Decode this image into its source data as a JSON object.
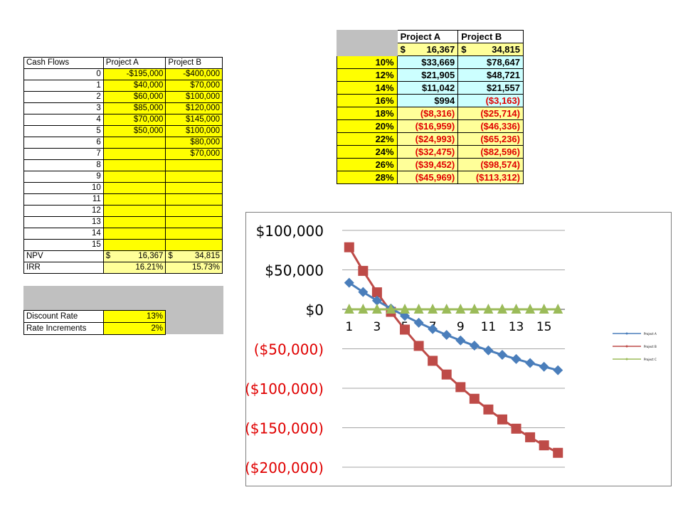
{
  "cashflow_table": {
    "headers": [
      "Cash Flows",
      "Project A",
      "Project B"
    ],
    "rows": [
      [
        "0",
        "-$195,000",
        "-$400,000"
      ],
      [
        "1",
        "$40,000",
        "$70,000"
      ],
      [
        "2",
        "$60,000",
        "$100,000"
      ],
      [
        "3",
        "$85,000",
        "$120,000"
      ],
      [
        "4",
        "$70,000",
        "$145,000"
      ],
      [
        "5",
        "$50,000",
        "$100,000"
      ],
      [
        "6",
        "",
        "$80,000"
      ],
      [
        "7",
        "",
        "$70,000"
      ],
      [
        "8",
        "",
        ""
      ],
      [
        "9",
        "",
        ""
      ],
      [
        "10",
        "",
        ""
      ],
      [
        "11",
        "",
        ""
      ],
      [
        "12",
        "",
        ""
      ],
      [
        "13",
        "",
        ""
      ],
      [
        "14",
        "",
        ""
      ],
      [
        "15",
        "",
        ""
      ]
    ],
    "npv": {
      "label": "NPV",
      "a_sym": "$",
      "a": "16,367",
      "b_sym": "$",
      "b": "34,815"
    },
    "irr": {
      "label": "IRR",
      "a": "16.21%",
      "b": "15.73%"
    },
    "discount_rate": {
      "label": "Discount Rate",
      "value": "13%"
    },
    "rate_increments": {
      "label": "Rate Increments",
      "value": "2%"
    }
  },
  "npv_table": {
    "headers": [
      "Project A",
      "Project B"
    ],
    "base": {
      "a_sym": "$",
      "a": "16,367",
      "b_sym": "$",
      "b": "34,815"
    },
    "rows": [
      {
        "rate": "10%",
        "a": "$33,669",
        "b": "$78,647"
      },
      {
        "rate": "12%",
        "a": "$21,905",
        "b": "$48,721"
      },
      {
        "rate": "14%",
        "a": "$11,042",
        "b": "$21,557"
      },
      {
        "rate": "16%",
        "a": "$994",
        "b": "($3,163)"
      },
      {
        "rate": "18%",
        "a": "($8,316)",
        "b": "($25,714)"
      },
      {
        "rate": "20%",
        "a": "($16,959)",
        "b": "($46,336)"
      },
      {
        "rate": "22%",
        "a": "($24,993)",
        "b": "($65,236)"
      },
      {
        "rate": "24%",
        "a": "($32,475)",
        "b": "($82,596)"
      },
      {
        "rate": "26%",
        "a": "($39,452)",
        "b": "($98,574)"
      },
      {
        "rate": "28%",
        "a": "($45,969)",
        "b": "($113,312)"
      }
    ]
  },
  "colors": {
    "series_a": "#4a7ebb",
    "series_b": "#be4b48",
    "series_c": "#9bbb59",
    "negative_label": "#e00000",
    "gridline": "#a6a6a6"
  },
  "chart_data": {
    "type": "line",
    "x": [
      1,
      2,
      3,
      4,
      5,
      6,
      7,
      8,
      9,
      10,
      11,
      12,
      13,
      14,
      15,
      16
    ],
    "xtick_labels": [
      "1",
      "3",
      "5",
      "7",
      "9",
      "11",
      "13",
      "15"
    ],
    "ytick_labels": [
      "$100,000",
      "$50,000",
      "$0",
      "($50,000)",
      "($100,000)",
      "($150,000)",
      "($200,000)"
    ],
    "ytick_values": [
      100000,
      50000,
      0,
      -50000,
      -100000,
      -150000,
      -200000
    ],
    "ylim": [
      -200000,
      100000
    ],
    "grid": true,
    "legend": "right",
    "series": [
      {
        "name": "Project A",
        "values": [
          33669,
          21905,
          11042,
          994,
          -8316,
          -16959,
          -24993,
          -32475,
          -39452,
          -45969,
          -52000,
          -57700,
          -63000,
          -68000,
          -72700,
          -77100
        ]
      },
      {
        "name": "Project B",
        "values": [
          78647,
          48721,
          21557,
          -3163,
          -25714,
          -46336,
          -65236,
          -82596,
          -98574,
          -113312,
          -126900,
          -139500,
          -151200,
          -162100,
          -172300,
          -181800
        ]
      },
      {
        "name": "Project C",
        "values": [
          0,
          0,
          0,
          0,
          0,
          0,
          0,
          0,
          0,
          0,
          0,
          0,
          0,
          0,
          0,
          0
        ]
      }
    ]
  }
}
